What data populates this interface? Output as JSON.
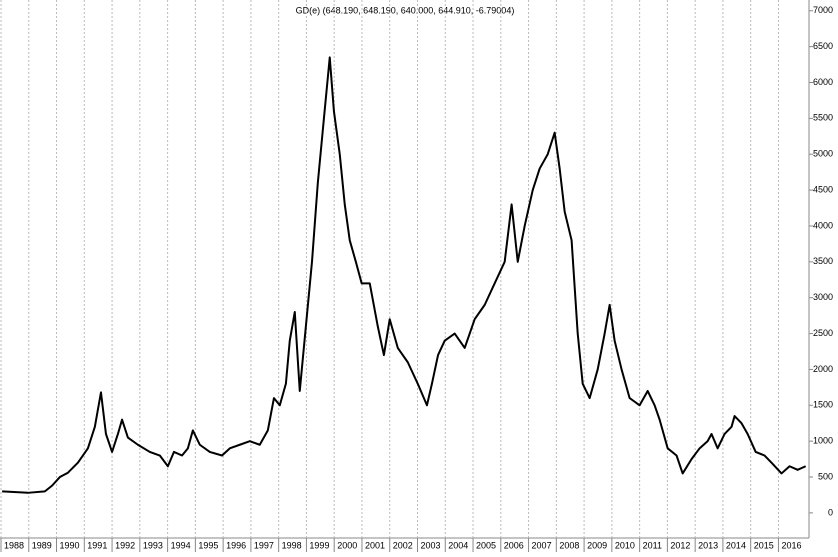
{
  "chart_data": {
    "type": "line",
    "title": "GD(e) (648.190, 648.190, 640.000, 644.910, -6.79004)",
    "x": [
      1988.04,
      1988.97,
      1989.58,
      1989.84,
      1990.12,
      1990.41,
      1990.77,
      1991.13,
      1991.38,
      1991.6,
      1991.78,
      1992.0,
      1992.21,
      1992.36,
      1992.57,
      1992.93,
      1993.36,
      1993.72,
      1994.01,
      1994.23,
      1994.52,
      1994.73,
      1994.91,
      1995.16,
      1995.52,
      1995.96,
      1996.24,
      1996.6,
      1996.96,
      1997.32,
      1997.61,
      1997.83,
      1998.04,
      1998.26,
      1998.4,
      1998.58,
      1998.76,
      1998.98,
      1999.2,
      1999.41,
      1999.63,
      1999.84,
      1999.99,
      2000.2,
      2000.38,
      2000.56,
      2000.78,
      2000.99,
      2001.28,
      2001.57,
      2001.79,
      2002.0,
      2002.29,
      2002.65,
      2003.01,
      2003.34,
      2003.52,
      2003.74,
      2003.98,
      2004.34,
      2004.7,
      2005.06,
      2005.42,
      2005.78,
      2006.14,
      2006.39,
      2006.61,
      2006.86,
      2007.15,
      2007.4,
      2007.69,
      2007.94,
      2008.12,
      2008.3,
      2008.55,
      2008.77,
      2008.95,
      2009.2,
      2009.49,
      2009.74,
      2009.92,
      2010.1,
      2010.35,
      2010.64,
      2011.0,
      2011.29,
      2011.54,
      2011.72,
      2012.01,
      2012.33,
      2012.55,
      2012.87,
      2013.16,
      2013.45,
      2013.59,
      2013.81,
      2014.06,
      2014.31,
      2014.42,
      2014.67,
      2014.89,
      2015.18,
      2015.5,
      2015.75,
      2016.11,
      2016.4,
      2016.69,
      2016.98
    ],
    "series": [
      {
        "name": "GD(e)",
        "color": "#000000",
        "values": [
          300,
          280,
          300,
          380,
          500,
          560,
          700,
          900,
          1200,
          1680,
          1100,
          850,
          1100,
          1300,
          1050,
          950,
          850,
          800,
          650,
          850,
          800,
          900,
          1150,
          950,
          850,
          800,
          900,
          950,
          1000,
          950,
          1150,
          1600,
          1500,
          1800,
          2400,
          2800,
          1700,
          2600,
          3500,
          4600,
          5500,
          6350,
          5600,
          5000,
          4300,
          3800,
          3500,
          3200,
          3200,
          2600,
          2200,
          2700,
          2300,
          2100,
          1800,
          1500,
          1800,
          2200,
          2400,
          2500,
          2300,
          2700,
          2900,
          3200,
          3500,
          4300,
          3500,
          4000,
          4500,
          4800,
          5000,
          5300,
          4800,
          4200,
          3800,
          2500,
          1800,
          1600,
          2000,
          2500,
          2900,
          2400,
          2000,
          1600,
          1500,
          1700,
          1500,
          1300,
          900,
          800,
          550,
          750,
          900,
          1000,
          1100,
          900,
          1100,
          1200,
          1350,
          1250,
          1100,
          850,
          800,
          700,
          550,
          650,
          600,
          650
        ]
      }
    ],
    "xlim": [
      1988,
      2017.1
    ],
    "xticks": [
      1988,
      1989,
      1990,
      1991,
      1992,
      1993,
      1994,
      1995,
      1996,
      1997,
      1998,
      1999,
      2000,
      2001,
      2002,
      2003,
      2004,
      2005,
      2006,
      2007,
      2008,
      2009,
      2010,
      2011,
      2012,
      2013,
      2014,
      2015,
      2016
    ],
    "ylim": [
      -350,
      7150
    ],
    "yticks": [
      0,
      500,
      1000,
      1500,
      2000,
      2500,
      3000,
      3500,
      4000,
      4500,
      5000,
      5500,
      6000,
      6500,
      7000
    ],
    "grid": "x"
  }
}
